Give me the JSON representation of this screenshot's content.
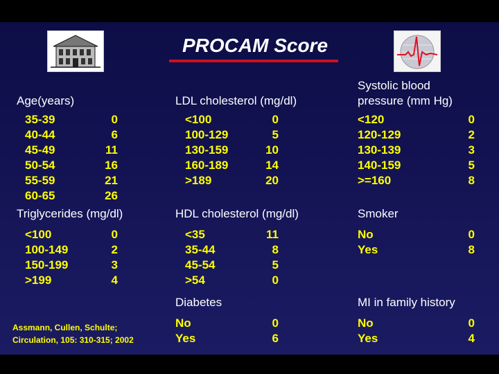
{
  "title": "PROCAM Score",
  "sections": {
    "age": {
      "header": "Age(years)",
      "rows": [
        {
          "label": "35-39",
          "value": "0"
        },
        {
          "label": "40-44",
          "value": "6"
        },
        {
          "label": "45-49",
          "value": "11"
        },
        {
          "label": "50-54",
          "value": "16"
        },
        {
          "label": "55-59",
          "value": "21"
        },
        {
          "label": "60-65",
          "value": "26"
        }
      ]
    },
    "ldl": {
      "header": "LDL cholesterol (mg/dl)",
      "rows": [
        {
          "label": "<100",
          "value": "0"
        },
        {
          "label": "100-129",
          "value": "5"
        },
        {
          "label": "130-159",
          "value": "10"
        },
        {
          "label": "160-189",
          "value": "14"
        },
        {
          "label": ">189",
          "value": "20"
        }
      ]
    },
    "sbp": {
      "header_line1": "Systolic blood",
      "header_line2": "pressure (mm Hg)",
      "rows": [
        {
          "label": "<120",
          "value": "0"
        },
        {
          "label": "120-129",
          "value": "2"
        },
        {
          "label": "130-139",
          "value": "3"
        },
        {
          "label": "140-159",
          "value": "5"
        },
        {
          "label": ">=160",
          "value": "8"
        }
      ]
    },
    "trig": {
      "header": "Triglycerides (mg/dl)",
      "rows": [
        {
          "label": "<100",
          "value": "0"
        },
        {
          "label": "100-149",
          "value": "2"
        },
        {
          "label": "150-199",
          "value": "3"
        },
        {
          "label": ">199",
          "value": "4"
        }
      ]
    },
    "hdl": {
      "header": "HDL cholesterol (mg/dl)",
      "rows": [
        {
          "label": "<35",
          "value": "11"
        },
        {
          "label": "35-44",
          "value": "8"
        },
        {
          "label": "45-54",
          "value": "5"
        },
        {
          "label": ">54",
          "value": "0"
        }
      ]
    },
    "smoker": {
      "header": "Smoker",
      "rows": [
        {
          "label": "No",
          "value": "0"
        },
        {
          "label": "Yes",
          "value": "8"
        }
      ]
    },
    "diabetes": {
      "header": "Diabetes",
      "rows": [
        {
          "label": "No",
          "value": "0"
        },
        {
          "label": "Yes",
          "value": "6"
        }
      ]
    },
    "mi_family": {
      "header": "MI in family history",
      "rows": [
        {
          "label": "No",
          "value": "0"
        },
        {
          "label": "Yes",
          "value": "4"
        }
      ]
    }
  },
  "citation": {
    "line1": "Assmann, Cullen, Schulte;",
    "line2": "Circulation, 105: 310-315; 2002"
  },
  "colors": {
    "background": "#14145a",
    "header_text": "#ffffff",
    "value_text": "#ffff00",
    "title_rule": "#d0101a"
  }
}
